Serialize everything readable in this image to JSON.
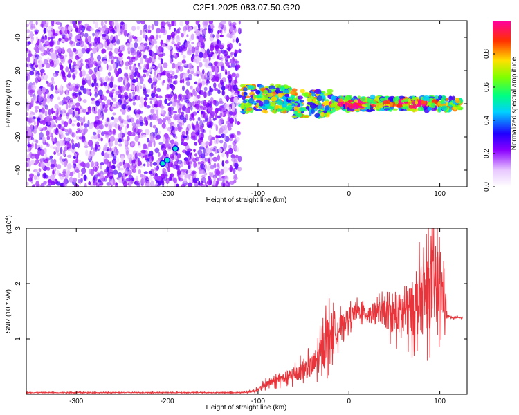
{
  "title": "C2E1.2025.083.07.50.G20",
  "chart_data": [
    {
      "type": "heatmap",
      "xlabel": "Height of straight line (km)",
      "ylabel": "Frequency (Hz)",
      "xlim": [
        -355,
        130
      ],
      "ylim": [
        -50,
        50
      ],
      "x_ticks": [
        -300,
        -200,
        -100,
        0,
        100
      ],
      "x_tick_labels": [
        "-300",
        "-200",
        "-100",
        "0",
        "100"
      ],
      "y_ticks": [
        -40,
        -20,
        0,
        20,
        40
      ],
      "y_tick_labels": [
        "-40",
        "-20",
        "0",
        "20",
        "40"
      ],
      "colorbar": {
        "label": "Normalized spectral amplitude",
        "range": [
          0,
          1
        ],
        "ticks": [
          0.0,
          0.2,
          0.4,
          0.6,
          0.8
        ],
        "tick_labels": [
          "0.0",
          "0.2",
          "0.4",
          "0.6",
          "0.8"
        ],
        "colormap": "rainbow (white-violet-blue-cyan-green-yellow-red-magenta)"
      },
      "features": [
        {
          "name": "noise",
          "x_range": [
            -355,
            -120
          ],
          "freq_range": [
            -50,
            50
          ],
          "amplitude": 0.2
        },
        {
          "name": "signal band",
          "x_range": [
            -120,
            125
          ],
          "freq_center": 0,
          "amplitude": 0.6
        },
        {
          "name": "blob",
          "x": -200,
          "freq": -34,
          "amplitude": 0.5
        }
      ]
    },
    {
      "type": "line",
      "xlabel": "Height of straight line (km)",
      "ylabel": "SNR (10 * v/v)",
      "y_multiplier": "(x10^4)",
      "xlim": [
        -355,
        130
      ],
      "ylim": [
        0,
        3
      ],
      "x_ticks": [
        -300,
        -200,
        -100,
        0,
        100
      ],
      "x_tick_labels": [
        "-300",
        "-200",
        "-100",
        "0",
        "100"
      ],
      "y_ticks": [
        1,
        2,
        3
      ],
      "y_tick_labels": [
        "1",
        "2",
        "3"
      ],
      "series": [
        {
          "color": "#e8343a",
          "x": [
            -355,
            -300,
            -250,
            -200,
            -150,
            -120,
            -110,
            -100,
            -90,
            -80,
            -70,
            -60,
            -50,
            -40,
            -30,
            -25,
            -20,
            -15,
            -10,
            -5,
            0,
            10,
            20,
            30,
            40,
            50,
            60,
            70,
            80,
            90,
            95,
            100,
            105,
            108,
            110,
            115,
            120,
            125
          ],
          "y": [
            0.03,
            0.03,
            0.03,
            0.03,
            0.03,
            0.03,
            0.04,
            0.08,
            0.2,
            0.25,
            0.3,
            0.35,
            0.45,
            0.5,
            0.75,
            1.0,
            1.1,
            1.15,
            1.2,
            1.3,
            1.4,
            1.5,
            1.45,
            1.5,
            1.45,
            1.4,
            1.5,
            1.55,
            1.7,
            1.9,
            2.0,
            1.9,
            1.8,
            1.4,
            1.4,
            1.38,
            1.38,
            1.38
          ],
          "noise_amplitude": [
            0.01,
            0.01,
            0.01,
            0.01,
            0.01,
            0.01,
            0.02,
            0.05,
            0.1,
            0.12,
            0.15,
            0.2,
            0.25,
            0.3,
            0.45,
            0.6,
            0.55,
            0.4,
            0.3,
            0.25,
            0.25,
            0.2,
            0.2,
            0.25,
            0.35,
            0.45,
            0.6,
            0.7,
            0.9,
            1.0,
            1.0,
            0.9,
            0.7,
            0.05,
            0.02,
            0.02,
            0.02,
            0.02
          ]
        }
      ]
    }
  ]
}
